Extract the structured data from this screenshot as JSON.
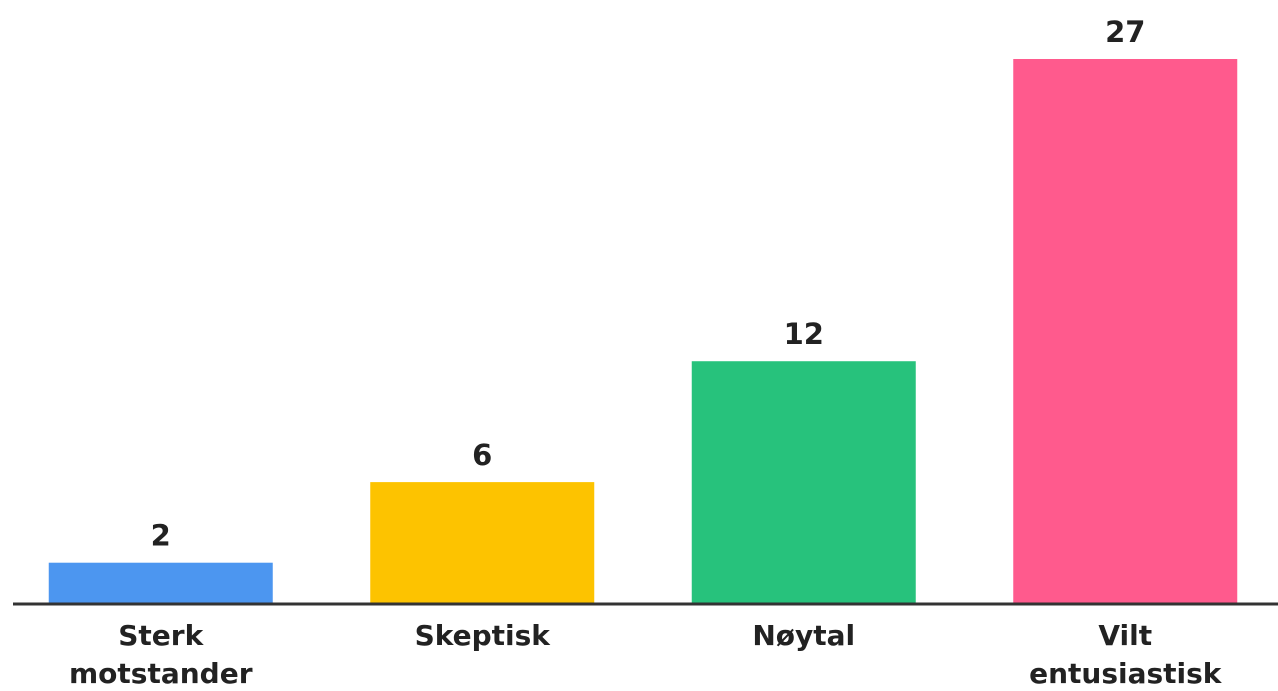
{
  "chart_data": {
    "type": "bar",
    "categories": [
      [
        "Sterk",
        "motstander"
      ],
      [
        "Skeptisk"
      ],
      [
        "Nøytal"
      ],
      [
        "Vilt",
        "entusiastisk"
      ]
    ],
    "values": [
      2,
      6,
      12,
      27
    ],
    "data_labels": [
      "2",
      "6",
      "12",
      "27"
    ],
    "bar_colors": [
      "#4c96f0",
      "#fdc300",
      "#27c27c",
      "#ff5a8d"
    ],
    "axis_color": "#333333",
    "title": "",
    "xlabel": "",
    "ylabel": "",
    "ylim": [
      0,
      27
    ],
    "grid": false,
    "legend": "none"
  }
}
